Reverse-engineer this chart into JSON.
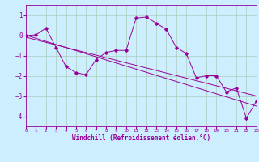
{
  "xlabel": "Windchill (Refroidissement éolien,°C)",
  "bg_color": "#cceeff",
  "line_color": "#990099",
  "grid_color": "#aaccbb",
  "xlim": [
    0,
    23
  ],
  "ylim": [
    -4.5,
    1.5
  ],
  "yticks": [
    1,
    0,
    -1,
    -2,
    -3,
    -4
  ],
  "xticks": [
    0,
    1,
    2,
    3,
    4,
    5,
    6,
    7,
    8,
    9,
    10,
    11,
    12,
    13,
    14,
    15,
    16,
    17,
    18,
    19,
    20,
    21,
    22,
    23
  ],
  "series1_x": [
    0,
    1,
    2,
    3,
    4,
    5,
    6,
    7,
    8,
    9,
    10,
    11,
    12,
    13,
    14,
    15,
    16,
    17,
    18,
    19,
    20,
    21,
    22,
    23
  ],
  "series1_y": [
    -0.02,
    0.02,
    0.35,
    -0.6,
    -1.55,
    -1.85,
    -1.95,
    -1.2,
    -0.85,
    -0.75,
    -0.75,
    0.85,
    0.9,
    0.6,
    0.3,
    -0.6,
    -0.9,
    -2.1,
    -2.0,
    -2.0,
    -2.8,
    -2.6,
    -4.1,
    -3.25
  ],
  "series2_x": [
    0,
    23
  ],
  "series2_y": [
    0.0,
    -3.5
  ],
  "series3_x": [
    0,
    23
  ],
  "series3_y": [
    -0.1,
    -3.0
  ],
  "marker": "D",
  "markersize": 1.8,
  "linewidth": 0.7,
  "xlabel_fontsize": 5.5,
  "xtick_fontsize": 4.2,
  "ytick_fontsize": 5.5
}
